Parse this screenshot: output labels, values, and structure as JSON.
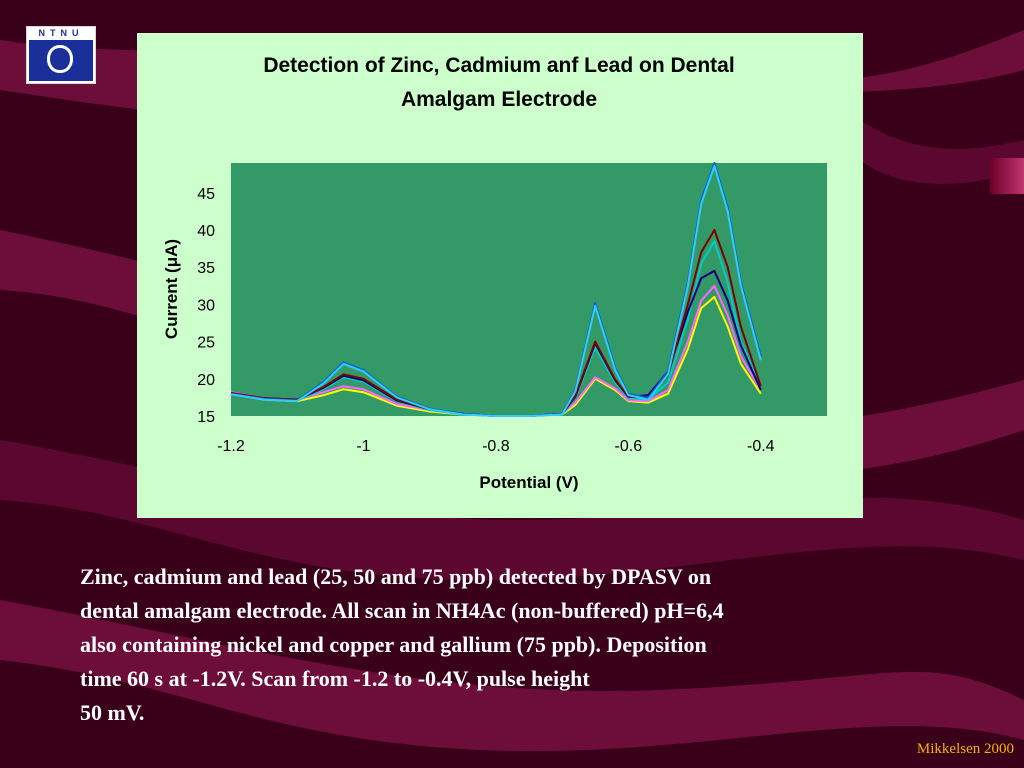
{
  "logo": {
    "text": "NTNU"
  },
  "chart_data": {
    "type": "line",
    "title": [
      "Detection of Zinc, Cadmium anf Lead on Dental",
      "Amalgam Electrode"
    ],
    "xlabel": "Potential (V)",
    "ylabel": "Current (μA)",
    "xlim": [
      -1.2,
      -0.3
    ],
    "ylim": [
      15,
      49
    ],
    "x_ticks": [
      -1.2,
      -1,
      -0.8,
      -0.6,
      -0.4
    ],
    "x_tick_labels": [
      "-1.2",
      "-1",
      "-0.8",
      "-0.6",
      "-0.4"
    ],
    "y_ticks": [
      15,
      20,
      25,
      30,
      35,
      40,
      45
    ],
    "y_tick_labels": [
      "15",
      "20",
      "25",
      "30",
      "35",
      "40",
      "45"
    ],
    "grid": false,
    "legend": "none",
    "plot_background": "#339966",
    "panel_background": "#ccffcc",
    "series": [
      {
        "color": "#ffff00",
        "x": [
          -1.2,
          -1.15,
          -1.1,
          -1.06,
          -1.03,
          -1.0,
          -0.95,
          -0.9,
          -0.85,
          -0.8,
          -0.75,
          -0.7,
          -0.68,
          -0.65,
          -0.62,
          -0.6,
          -0.57,
          -0.54,
          -0.51,
          -0.49,
          -0.47,
          -0.45,
          -0.43,
          -0.4
        ],
        "y": [
          18.0,
          17.2,
          17.0,
          17.8,
          18.6,
          18.2,
          16.4,
          15.6,
          15.2,
          15.0,
          15.0,
          15.2,
          16.5,
          20.0,
          18.5,
          17.0,
          16.8,
          18.0,
          24.0,
          29.5,
          31.0,
          27.0,
          22.0,
          18.0
        ]
      },
      {
        "color": "#ff66ff",
        "x": [
          -1.2,
          -1.15,
          -1.1,
          -1.06,
          -1.03,
          -1.0,
          -0.95,
          -0.9,
          -0.85,
          -0.8,
          -0.75,
          -0.7,
          -0.68,
          -0.65,
          -0.62,
          -0.6,
          -0.57,
          -0.54,
          -0.51,
          -0.49,
          -0.47,
          -0.45,
          -0.43,
          -0.4
        ],
        "y": [
          18.2,
          17.4,
          17.2,
          18.2,
          19.0,
          18.6,
          16.6,
          15.8,
          15.3,
          15.0,
          15.0,
          15.3,
          16.8,
          20.2,
          18.7,
          17.1,
          17.0,
          18.5,
          25.0,
          30.5,
          32.5,
          28.5,
          23.0,
          18.5
        ]
      },
      {
        "color": "#00cccc",
        "x": [
          -1.2,
          -1.15,
          -1.1,
          -1.06,
          -1.03,
          -1.0,
          -0.95,
          -0.9,
          -0.85,
          -0.8,
          -0.75,
          -0.7,
          -0.68,
          -0.65,
          -0.62,
          -0.6,
          -0.57,
          -0.54,
          -0.51,
          -0.49,
          -0.47,
          -0.45,
          -0.43,
          -0.4
        ],
        "y": [
          18.0,
          17.3,
          17.1,
          18.6,
          20.2,
          19.6,
          17.0,
          15.8,
          15.2,
          15.0,
          15.0,
          15.2,
          17.4,
          24.2,
          19.5,
          17.4,
          17.2,
          19.5,
          28.0,
          35.5,
          38.5,
          33.0,
          25.0,
          19.0
        ]
      },
      {
        "color": "#000080",
        "x": [
          -1.2,
          -1.15,
          -1.1,
          -1.06,
          -1.03,
          -1.0,
          -0.95,
          -0.9,
          -0.85,
          -0.8,
          -0.75,
          -0.7,
          -0.68,
          -0.65,
          -0.62,
          -0.6,
          -0.57,
          -0.54,
          -0.51,
          -0.49,
          -0.47,
          -0.45,
          -0.43,
          -0.4
        ],
        "y": [
          18.0,
          17.4,
          17.2,
          18.8,
          20.4,
          19.8,
          17.1,
          15.9,
          15.3,
          15.0,
          15.0,
          15.3,
          17.6,
          24.8,
          19.8,
          17.6,
          17.8,
          21.0,
          29.0,
          33.5,
          34.5,
          30.5,
          24.5,
          18.5
        ]
      },
      {
        "color": "#800000",
        "x": [
          -1.2,
          -1.15,
          -1.1,
          -1.06,
          -1.03,
          -1.0,
          -0.95,
          -0.9,
          -0.85,
          -0.8,
          -0.75,
          -0.7,
          -0.68,
          -0.65,
          -0.62,
          -0.6,
          -0.57,
          -0.54,
          -0.51,
          -0.49,
          -0.47,
          -0.45,
          -0.43,
          -0.4
        ],
        "y": [
          18.1,
          17.4,
          17.2,
          18.9,
          20.6,
          20.0,
          17.2,
          15.9,
          15.3,
          15.0,
          15.0,
          15.3,
          17.7,
          25.0,
          19.9,
          17.6,
          17.4,
          20.5,
          30.0,
          37.0,
          40.0,
          35.0,
          27.0,
          19.0
        ]
      },
      {
        "color": "#0066cc",
        "x": [
          -1.2,
          -1.15,
          -1.1,
          -1.06,
          -1.03,
          -1.0,
          -0.95,
          -0.9,
          -0.85,
          -0.8,
          -0.75,
          -0.7,
          -0.68,
          -0.65,
          -0.62,
          -0.6,
          -0.57,
          -0.54,
          -0.51,
          -0.49,
          -0.47,
          -0.45,
          -0.43,
          -0.4
        ],
        "y": [
          18.0,
          17.3,
          17.1,
          19.6,
          22.2,
          21.2,
          17.6,
          16.0,
          15.3,
          15.0,
          15.0,
          15.3,
          18.5,
          30.2,
          21.5,
          18.0,
          17.4,
          21.0,
          33.0,
          44.0,
          49.0,
          43.0,
          33.0,
          23.0
        ]
      },
      {
        "color": "#33ccff",
        "x": [
          -1.2,
          -1.15,
          -1.1,
          -1.06,
          -1.03,
          -1.0,
          -0.95,
          -0.9,
          -0.85,
          -0.8,
          -0.75,
          -0.7,
          -0.68,
          -0.65,
          -0.62,
          -0.6,
          -0.57,
          -0.54,
          -0.51,
          -0.49,
          -0.47,
          -0.45,
          -0.43,
          -0.4
        ],
        "y": [
          17.9,
          17.2,
          17.0,
          19.4,
          22.0,
          21.0,
          17.5,
          15.9,
          15.2,
          15.0,
          15.0,
          15.2,
          18.3,
          29.8,
          21.2,
          17.8,
          17.2,
          20.6,
          32.5,
          43.5,
          48.6,
          42.5,
          32.5,
          22.5
        ]
      }
    ]
  },
  "caption": [
    "Zinc, cadmium and lead (25, 50 and 75 ppb) detected by DPASV on",
    "dental amalgam electrode. All scan in NH4Ac (non-buffered) pH=6,4",
    "also containing nickel and copper and gallium (75 ppb). Deposition",
    "time 60 s at -1.2V. Scan from -1.2 to -0.4V, pulse height",
    "50 mV."
  ],
  "credit": "Mikkelsen 2000",
  "colors": {
    "background": "#3a0019",
    "stripe": "#6d0d3a",
    "caption_text": "#ffffff",
    "credit_text": "#f0b400"
  }
}
